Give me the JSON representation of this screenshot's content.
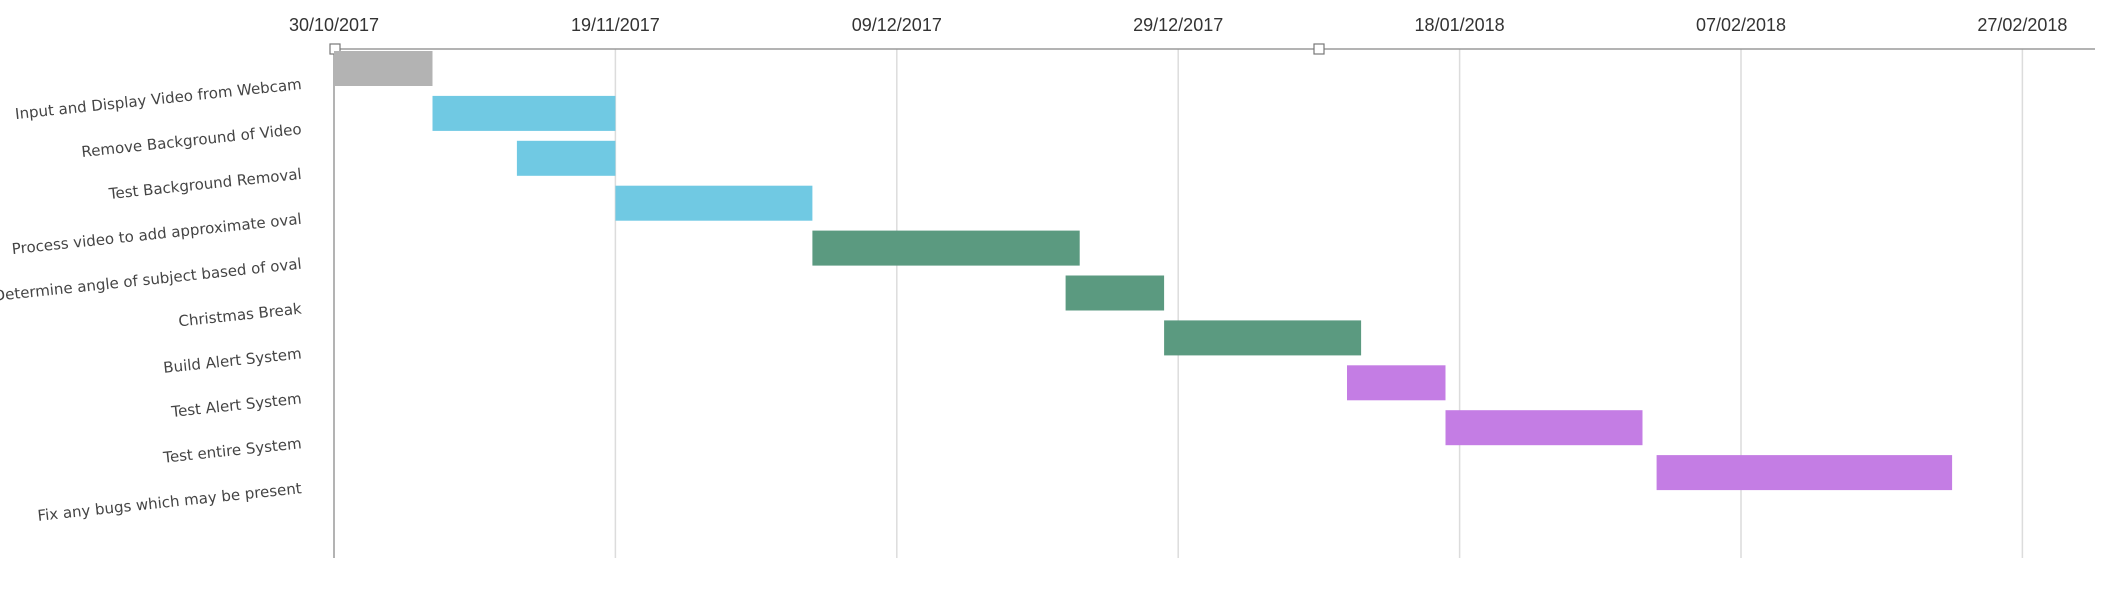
{
  "chart_data": {
    "type": "gantt",
    "title": "",
    "x_ticks": [
      "30/10/2017",
      "19/11/2017",
      "09/12/2017",
      "29/12/2017",
      "18/01/2018",
      "07/02/2018",
      "27/02/2018"
    ],
    "x_range": [
      "2017-10-30",
      "2018-03-01"
    ],
    "grid": true,
    "tasks": [
      {
        "name": "Input and Display Video from Webcam",
        "start": "2017-10-30",
        "end": "2017-11-06",
        "color": "#b3b3b3"
      },
      {
        "name": "Remove Background of Video",
        "start": "2017-11-06",
        "end": "2017-11-19",
        "color": "#70c9e3"
      },
      {
        "name": "Test Background Removal",
        "start": "2017-11-12",
        "end": "2017-11-19",
        "color": "#70c9e3"
      },
      {
        "name": "Process video to add approximate oval",
        "start": "2017-11-19",
        "end": "2017-12-03",
        "color": "#70c9e3"
      },
      {
        "name": "Determine angle of subject based of oval",
        "start": "2017-12-03",
        "end": "2017-12-22",
        "color": "#5b9a80"
      },
      {
        "name": "Christmas Break",
        "start": "2017-12-21",
        "end": "2017-12-28",
        "color": "#5b9a80"
      },
      {
        "name": "Build Alert System",
        "start": "2017-12-28",
        "end": "2018-01-11",
        "color": "#5b9a80"
      },
      {
        "name": "Test Alert System",
        "start": "2018-01-10",
        "end": "2018-01-17",
        "color": "#c47de4"
      },
      {
        "name": "Test entire System",
        "start": "2018-01-17",
        "end": "2018-01-31",
        "color": "#c47de4"
      },
      {
        "name": "Fix any bugs which may be present",
        "start": "2018-02-01",
        "end": "2018-02-22",
        "color": "#c47de4"
      }
    ]
  }
}
